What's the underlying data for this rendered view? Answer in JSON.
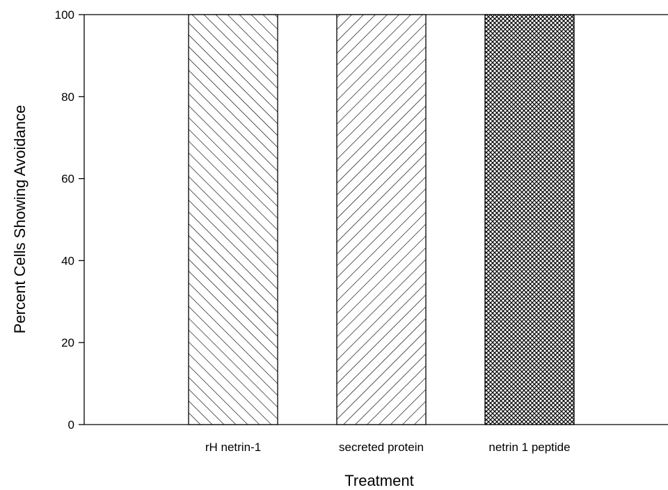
{
  "chart_data": {
    "type": "bar",
    "title": "",
    "xlabel": "Treatment",
    "ylabel": "Percent Cells Showing Avoidance",
    "categories": [
      "rH netrin-1",
      "secreted protein",
      "netrin 1 peptide"
    ],
    "values": [
      100,
      100,
      100
    ],
    "ylim": [
      0,
      100
    ],
    "yticks": [
      0,
      20,
      40,
      60,
      80,
      100
    ],
    "ytick_labels": [
      "0",
      "20",
      "40",
      "60",
      "80",
      "100"
    ],
    "bar_patterns": [
      "diagonal-backslash-hatch",
      "diagonal-forward-hatch",
      "crosshatch"
    ],
    "grid": false,
    "legend": "none",
    "colors": {
      "bar_stroke": "#000000",
      "background": "#ffffff",
      "hatch": "#000000"
    }
  }
}
